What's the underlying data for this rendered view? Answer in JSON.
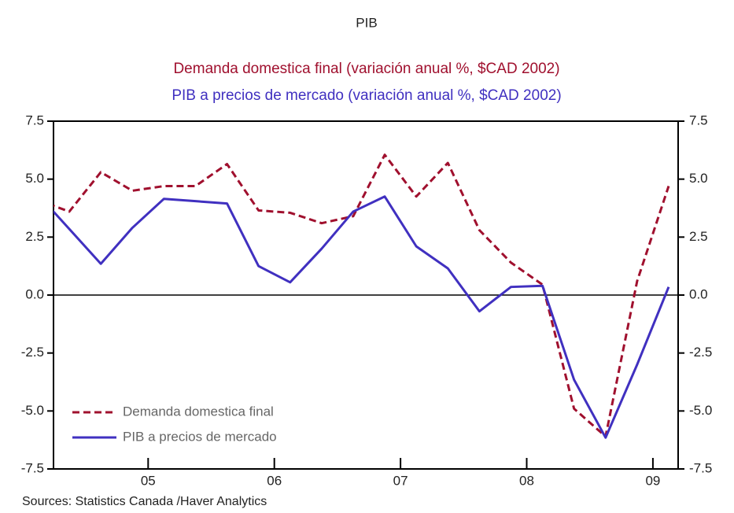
{
  "chart_data": {
    "type": "line",
    "title": "PIB",
    "subtitles": [
      {
        "text": "Demanda domestica final (variación anual %, $CAD 2002)",
        "color": "#a0102e"
      },
      {
        "text": "PIB a precios de mercado (variación anual %, $CAD 2002)",
        "color": "#4030c0"
      }
    ],
    "source": "Sources:  Statistics Canada /Haver Analytics",
    "x": [
      2004.625,
      2004.875,
      2005.125,
      2005.375,
      2005.625,
      2005.875,
      2006.125,
      2006.375,
      2006.625,
      2006.875,
      2007.125,
      2007.375,
      2007.625,
      2007.875,
      2008.125,
      2008.375,
      2008.625,
      2008.875,
      2009.125,
      2009.375,
      2009.625
    ],
    "series": [
      {
        "name": "Demanda domestica final",
        "color": "#a0102e",
        "dash": true,
        "values": [
          4.1,
          3.6,
          5.3,
          4.5,
          4.7,
          4.7,
          5.65,
          3.65,
          3.55,
          3.1,
          3.4,
          6.05,
          4.25,
          5.7,
          2.8,
          1.4,
          0.45,
          -4.9,
          -6.1,
          0.6,
          4.7
        ]
      },
      {
        "name": "PIB a precios de mercado",
        "color": "#4030c0",
        "dash": false,
        "values": [
          4.35,
          2.85,
          1.35,
          2.9,
          4.15,
          4.05,
          3.95,
          1.25,
          0.55,
          2.0,
          3.6,
          4.25,
          2.1,
          1.15,
          -0.7,
          0.35,
          0.4,
          -3.65,
          -6.15,
          -3.0,
          0.35
        ]
      }
    ],
    "xlim": [
      2004.75,
      2009.7
    ],
    "xticks": [
      {
        "value": 2005.5,
        "label": "05"
      },
      {
        "value": 2006.5,
        "label": "06"
      },
      {
        "value": 2007.5,
        "label": "07"
      },
      {
        "value": 2008.5,
        "label": "08"
      },
      {
        "value": 2009.5,
        "label": "09"
      }
    ],
    "ylim": [
      -7.5,
      7.5
    ],
    "yticks": [
      {
        "value": -7.5,
        "label": "-7.5"
      },
      {
        "value": -5,
        "label": "-5.0"
      },
      {
        "value": -2.5,
        "label": "-2.5"
      },
      {
        "value": 0,
        "label": "0.0"
      },
      {
        "value": 2.5,
        "label": "2.5"
      },
      {
        "value": 5,
        "label": "5.0"
      },
      {
        "value": 7.5,
        "label": "7.5"
      }
    ],
    "right_axis": true,
    "legend": "lower left"
  }
}
